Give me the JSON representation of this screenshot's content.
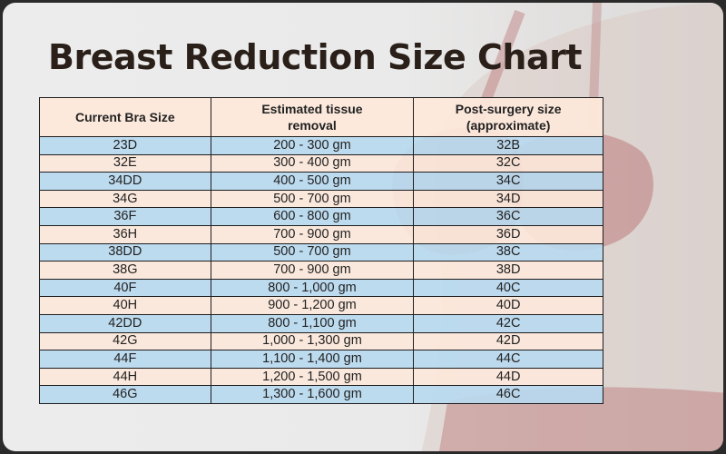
{
  "title": "Breast Reduction Size Chart",
  "colors": {
    "header_bg": "#fde8da",
    "row_blue": "#b8d9f0",
    "row_peach": "#fde8da",
    "title_text": "#2a2019",
    "border": "#1e1e1e"
  },
  "table": {
    "headers": [
      [
        "Current Bra Size"
      ],
      [
        "Estimated tissue",
        "removal"
      ],
      [
        "Post-surgery size",
        "(approximate)"
      ]
    ],
    "rows": [
      [
        "23D",
        "200 - 300 gm",
        "32B"
      ],
      [
        "32E",
        "300 - 400 gm",
        "32C"
      ],
      [
        "34DD",
        "400 - 500 gm",
        "34C"
      ],
      [
        "34G",
        "500 - 700 gm",
        "34D"
      ],
      [
        "36F",
        "600 - 800 gm",
        "36C"
      ],
      [
        "36H",
        "700 - 900 gm",
        "36D"
      ],
      [
        "38DD",
        "500 - 700 gm",
        "38C"
      ],
      [
        "38G",
        "700 - 900 gm",
        "38D"
      ],
      [
        "40F",
        "800 - 1,000 gm",
        "40C"
      ],
      [
        "40H",
        "900 - 1,200 gm",
        "40D"
      ],
      [
        "42DD",
        "800 - 1,100 gm",
        "42C"
      ],
      [
        "42G",
        "1,000 - 1,300 gm",
        "42D"
      ],
      [
        "44F",
        "1,100 - 1,400 gm",
        "44C"
      ],
      [
        "44H",
        "1,200 - 1,500 gm",
        "44D"
      ],
      [
        "46G",
        "1,300 - 1,600 gm",
        "46C"
      ]
    ]
  }
}
